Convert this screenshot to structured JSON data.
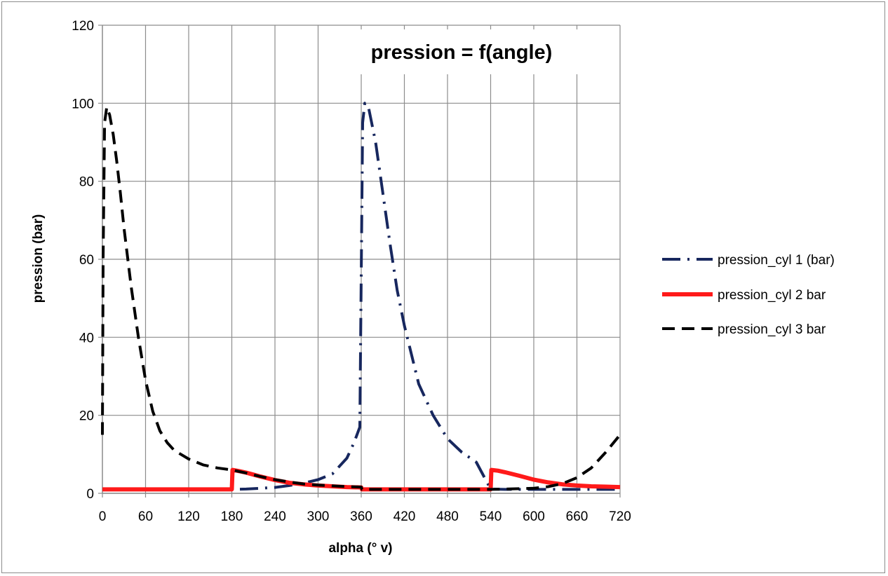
{
  "chart_data": {
    "type": "line",
    "title": "pression = f(angle)",
    "xlabel": "alpha (° v)",
    "ylabel": "pression (bar)",
    "xlim": [
      0,
      720
    ],
    "ylim": [
      0,
      120
    ],
    "xticks": [
      0,
      60,
      120,
      180,
      240,
      300,
      360,
      420,
      480,
      540,
      600,
      660,
      720
    ],
    "yticks": [
      0,
      20,
      40,
      60,
      80,
      100,
      120
    ],
    "grid": true,
    "legend_position": "right",
    "series": [
      {
        "name": "pression_cyl 1 (bar)",
        "color": "#17275e",
        "style": "dash-dot",
        "x": [
          0,
          180,
          200,
          220,
          240,
          260,
          280,
          300,
          320,
          340,
          350,
          358,
          362,
          365,
          370,
          380,
          390,
          400,
          410,
          420,
          440,
          460,
          480,
          500,
          520,
          540,
          560,
          600,
          640,
          680,
          720
        ],
        "y": [
          1,
          1,
          1.1,
          1.3,
          1.5,
          2,
          2.6,
          3.5,
          5,
          9,
          13,
          17,
          95,
          100,
          99,
          90,
          77,
          64,
          52,
          43,
          28,
          20,
          14,
          10.5,
          8,
          1.1,
          1,
          1,
          1,
          1,
          1
        ]
      },
      {
        "name": "pression_cyl 2 bar",
        "color": "#ff1a1a",
        "style": "solid",
        "x": [
          0,
          180,
          181,
          190,
          200,
          210,
          220,
          240,
          260,
          280,
          300,
          320,
          340,
          360,
          361,
          400,
          440,
          480,
          540,
          541,
          550,
          560,
          580,
          600,
          620,
          640,
          660,
          680,
          700,
          720
        ],
        "y": [
          1,
          1,
          6,
          5.7,
          5.3,
          4.8,
          4.3,
          3.4,
          2.7,
          2.3,
          2,
          1.8,
          1.6,
          1.5,
          1,
          1,
          1,
          1,
          1,
          6,
          5.8,
          5.4,
          4.5,
          3.5,
          2.8,
          2.3,
          2,
          1.8,
          1.7,
          1.6
        ]
      },
      {
        "name": "pression_cyl 3 bar",
        "color": "#000000",
        "style": "dash",
        "x": [
          0,
          1,
          3,
          6,
          10,
          15,
          20,
          25,
          30,
          40,
          50,
          60,
          70,
          80,
          90,
          100,
          120,
          140,
          160,
          180,
          200,
          220,
          240,
          260,
          280,
          300,
          320,
          340,
          360,
          361,
          400,
          440,
          480,
          520,
          540,
          560,
          600,
          620,
          640,
          660,
          680,
          700,
          720
        ],
        "y": [
          15,
          60,
          95,
          99,
          97,
          92,
          85,
          77,
          68,
          53,
          40,
          29,
          21,
          16,
          13,
          11,
          8.8,
          7.3,
          6.5,
          6,
          5.2,
          4.3,
          3.5,
          2.9,
          2.4,
          2.1,
          1.9,
          1.7,
          1.6,
          1,
          1,
          1,
          1,
          1,
          1,
          1.1,
          1.3,
          1.7,
          2.5,
          4,
          6.5,
          10.5,
          15
        ]
      }
    ]
  }
}
